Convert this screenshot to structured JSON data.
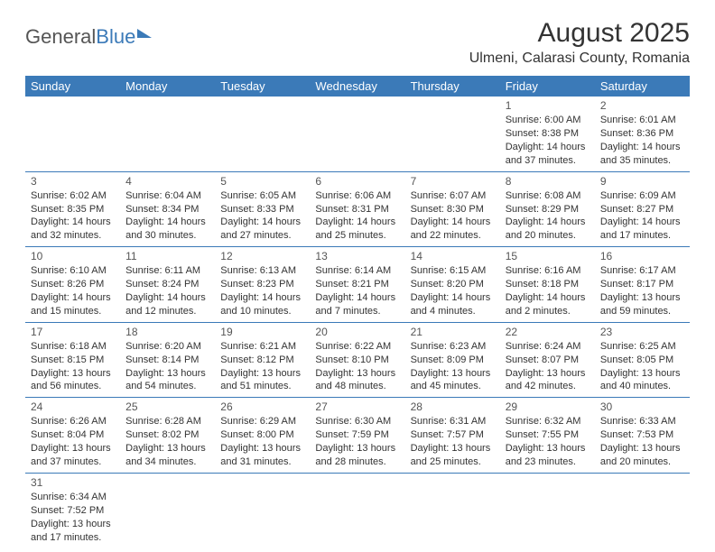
{
  "logo": {
    "part1": "General",
    "part2": "Blue"
  },
  "title": "August 2025",
  "location": "Ulmeni, Calarasi County, Romania",
  "days_of_week": [
    "Sunday",
    "Monday",
    "Tuesday",
    "Wednesday",
    "Thursday",
    "Friday",
    "Saturday"
  ],
  "colors": {
    "header_bg": "#3b7ab8",
    "header_text": "#ffffff",
    "border": "#3b7ab8",
    "text": "#333333",
    "logo_gray": "#555555",
    "logo_blue": "#3b7ab8",
    "background": "#ffffff"
  },
  "fonts": {
    "family": "Arial, Helvetica, sans-serif",
    "title_size_pt": 22,
    "location_size_pt": 12,
    "dayhead_size_pt": 10,
    "cell_size_pt": 8
  },
  "calendar": {
    "type": "table",
    "first_weekday_index": 5,
    "num_days": 31,
    "cells": {
      "1": {
        "sunrise": "6:00 AM",
        "sunset": "8:38 PM",
        "daylight": "14 hours and 37 minutes."
      },
      "2": {
        "sunrise": "6:01 AM",
        "sunset": "8:36 PM",
        "daylight": "14 hours and 35 minutes."
      },
      "3": {
        "sunrise": "6:02 AM",
        "sunset": "8:35 PM",
        "daylight": "14 hours and 32 minutes."
      },
      "4": {
        "sunrise": "6:04 AM",
        "sunset": "8:34 PM",
        "daylight": "14 hours and 30 minutes."
      },
      "5": {
        "sunrise": "6:05 AM",
        "sunset": "8:33 PM",
        "daylight": "14 hours and 27 minutes."
      },
      "6": {
        "sunrise": "6:06 AM",
        "sunset": "8:31 PM",
        "daylight": "14 hours and 25 minutes."
      },
      "7": {
        "sunrise": "6:07 AM",
        "sunset": "8:30 PM",
        "daylight": "14 hours and 22 minutes."
      },
      "8": {
        "sunrise": "6:08 AM",
        "sunset": "8:29 PM",
        "daylight": "14 hours and 20 minutes."
      },
      "9": {
        "sunrise": "6:09 AM",
        "sunset": "8:27 PM",
        "daylight": "14 hours and 17 minutes."
      },
      "10": {
        "sunrise": "6:10 AM",
        "sunset": "8:26 PM",
        "daylight": "14 hours and 15 minutes."
      },
      "11": {
        "sunrise": "6:11 AM",
        "sunset": "8:24 PM",
        "daylight": "14 hours and 12 minutes."
      },
      "12": {
        "sunrise": "6:13 AM",
        "sunset": "8:23 PM",
        "daylight": "14 hours and 10 minutes."
      },
      "13": {
        "sunrise": "6:14 AM",
        "sunset": "8:21 PM",
        "daylight": "14 hours and 7 minutes."
      },
      "14": {
        "sunrise": "6:15 AM",
        "sunset": "8:20 PM",
        "daylight": "14 hours and 4 minutes."
      },
      "15": {
        "sunrise": "6:16 AM",
        "sunset": "8:18 PM",
        "daylight": "14 hours and 2 minutes."
      },
      "16": {
        "sunrise": "6:17 AM",
        "sunset": "8:17 PM",
        "daylight": "13 hours and 59 minutes."
      },
      "17": {
        "sunrise": "6:18 AM",
        "sunset": "8:15 PM",
        "daylight": "13 hours and 56 minutes."
      },
      "18": {
        "sunrise": "6:20 AM",
        "sunset": "8:14 PM",
        "daylight": "13 hours and 54 minutes."
      },
      "19": {
        "sunrise": "6:21 AM",
        "sunset": "8:12 PM",
        "daylight": "13 hours and 51 minutes."
      },
      "20": {
        "sunrise": "6:22 AM",
        "sunset": "8:10 PM",
        "daylight": "13 hours and 48 minutes."
      },
      "21": {
        "sunrise": "6:23 AM",
        "sunset": "8:09 PM",
        "daylight": "13 hours and 45 minutes."
      },
      "22": {
        "sunrise": "6:24 AM",
        "sunset": "8:07 PM",
        "daylight": "13 hours and 42 minutes."
      },
      "23": {
        "sunrise": "6:25 AM",
        "sunset": "8:05 PM",
        "daylight": "13 hours and 40 minutes."
      },
      "24": {
        "sunrise": "6:26 AM",
        "sunset": "8:04 PM",
        "daylight": "13 hours and 37 minutes."
      },
      "25": {
        "sunrise": "6:28 AM",
        "sunset": "8:02 PM",
        "daylight": "13 hours and 34 minutes."
      },
      "26": {
        "sunrise": "6:29 AM",
        "sunset": "8:00 PM",
        "daylight": "13 hours and 31 minutes."
      },
      "27": {
        "sunrise": "6:30 AM",
        "sunset": "7:59 PM",
        "daylight": "13 hours and 28 minutes."
      },
      "28": {
        "sunrise": "6:31 AM",
        "sunset": "7:57 PM",
        "daylight": "13 hours and 25 minutes."
      },
      "29": {
        "sunrise": "6:32 AM",
        "sunset": "7:55 PM",
        "daylight": "13 hours and 23 minutes."
      },
      "30": {
        "sunrise": "6:33 AM",
        "sunset": "7:53 PM",
        "daylight": "13 hours and 20 minutes."
      },
      "31": {
        "sunrise": "6:34 AM",
        "sunset": "7:52 PM",
        "daylight": "13 hours and 17 minutes."
      }
    },
    "labels": {
      "sunrise_prefix": "Sunrise: ",
      "sunset_prefix": "Sunset: ",
      "daylight_prefix": "Daylight: "
    }
  }
}
